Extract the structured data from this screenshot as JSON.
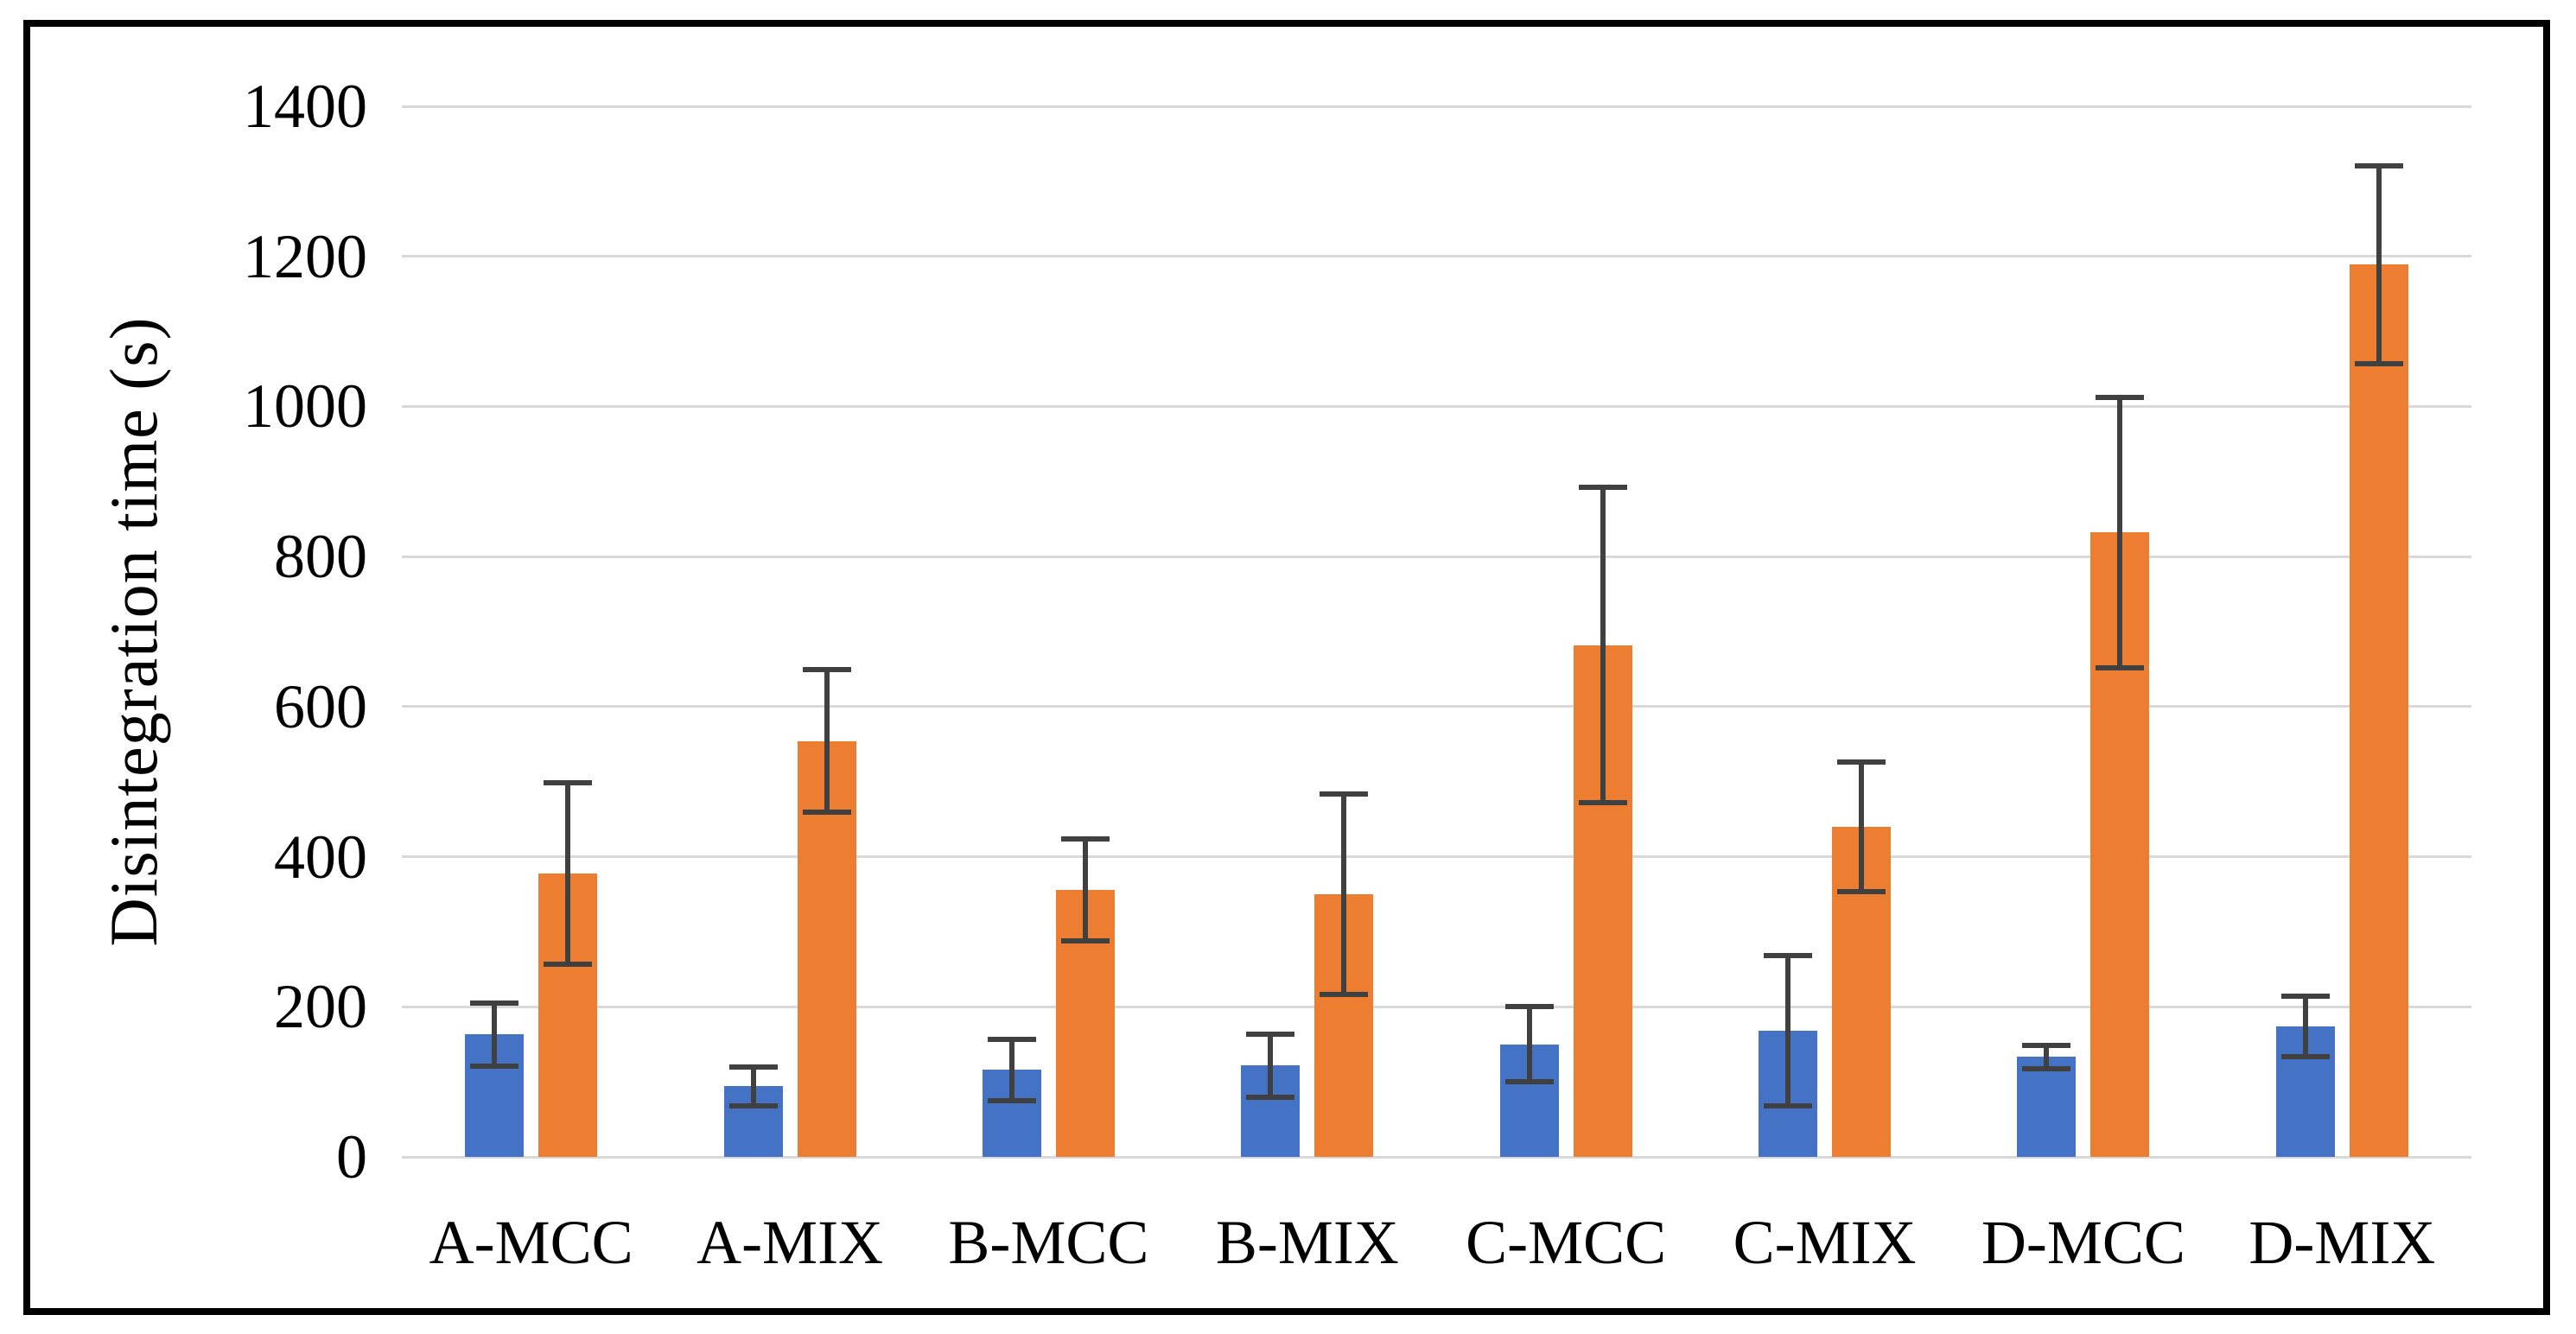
{
  "chart_data": {
    "type": "bar",
    "title": "",
    "xlabel": "",
    "ylabel": "Disintegration time (s)",
    "ylim": [
      0,
      1400
    ],
    "yticks": [
      0,
      200,
      400,
      600,
      800,
      1000,
      1200,
      1400
    ],
    "grid": true,
    "legend": "none",
    "error_bars": true,
    "categories": [
      "A-MCC",
      "A-MIX",
      "B-MCC",
      "B-MIX",
      "C-MCC",
      "C-MIX",
      "D-MCC",
      "D-MIX"
    ],
    "series": [
      {
        "name": "blue",
        "color": "#4472C4",
        "values": [
          163,
          94,
          116,
          122,
          150,
          168,
          133,
          174
        ],
        "errors": [
          42,
          26,
          41,
          42,
          50,
          100,
          16,
          40
        ]
      },
      {
        "name": "orange",
        "color": "#ED7D31",
        "values": [
          378,
          554,
          356,
          350,
          682,
          440,
          832,
          1189
        ],
        "errors": [
          121,
          95,
          68,
          133,
          210,
          86,
          180,
          132
        ]
      }
    ]
  },
  "styles": {
    "gridline_color": "#D9D9D9",
    "error_bar_color": "#404040",
    "border_color": "#000000",
    "background": "#FFFFFF",
    "text_color": "#000000"
  }
}
